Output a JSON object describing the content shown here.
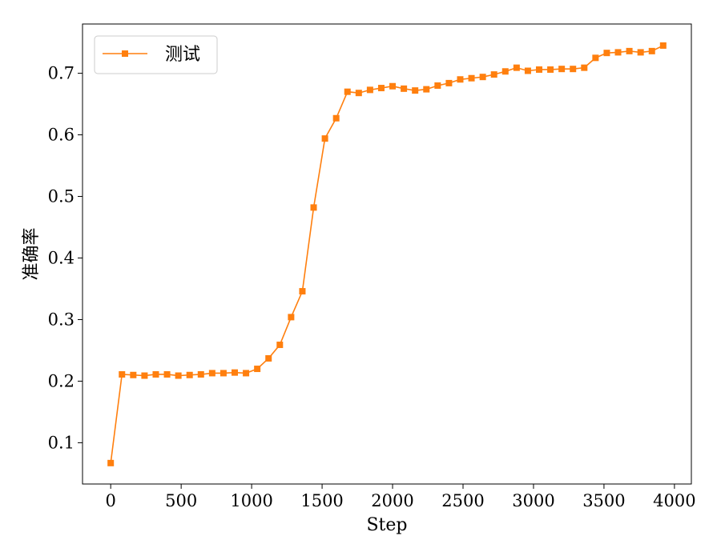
{
  "chart_data": {
    "type": "line",
    "title": "",
    "xlabel": "Step",
    "ylabel": "准确率",
    "xlim": [
      -200,
      4120
    ],
    "ylim": [
      0.033,
      0.78
    ],
    "x_ticks": [
      0,
      500,
      1000,
      1500,
      2000,
      2500,
      3000,
      3500,
      4000
    ],
    "y_ticks": [
      0.1,
      0.2,
      0.3,
      0.4,
      0.5,
      0.6,
      0.7
    ],
    "x_tick_labels": [
      "0",
      "500",
      "1000",
      "1500",
      "2000",
      "2500",
      "3000",
      "3500",
      "4000"
    ],
    "y_tick_labels": [
      "0.1",
      "0.2",
      "0.3",
      "0.4",
      "0.5",
      "0.6",
      "0.7"
    ],
    "grid": false,
    "legend": {
      "position": "top-left"
    },
    "series": [
      {
        "name": "测试",
        "color": "#ff7f0e",
        "marker": "square",
        "x": [
          0,
          80,
          160,
          240,
          320,
          400,
          480,
          560,
          640,
          720,
          800,
          880,
          960,
          1040,
          1120,
          1200,
          1280,
          1360,
          1440,
          1520,
          1600,
          1680,
          1760,
          1840,
          1920,
          2000,
          2080,
          2160,
          2240,
          2320,
          2400,
          2480,
          2560,
          2640,
          2720,
          2800,
          2880,
          2960,
          3040,
          3120,
          3200,
          3280,
          3360,
          3440,
          3520,
          3600,
          3680,
          3760,
          3840,
          3920
        ],
        "y": [
          0.067,
          0.211,
          0.21,
          0.209,
          0.211,
          0.211,
          0.209,
          0.21,
          0.211,
          0.213,
          0.213,
          0.214,
          0.213,
          0.22,
          0.237,
          0.259,
          0.304,
          0.346,
          0.482,
          0.594,
          0.627,
          0.67,
          0.668,
          0.673,
          0.676,
          0.679,
          0.675,
          0.672,
          0.674,
          0.68,
          0.684,
          0.69,
          0.692,
          0.694,
          0.698,
          0.703,
          0.709,
          0.704,
          0.706,
          0.706,
          0.707,
          0.707,
          0.709,
          0.725,
          0.733,
          0.734,
          0.736,
          0.734,
          0.736,
          0.745
        ]
      }
    ]
  }
}
